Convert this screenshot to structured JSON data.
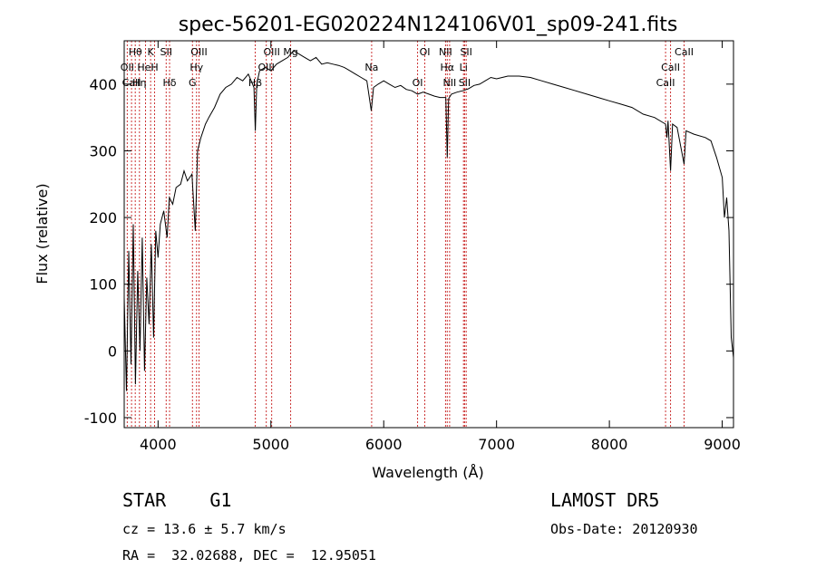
{
  "header": {
    "title": "spec-56201-EG020224N124106V01_sp09-241.fits"
  },
  "chart_data": {
    "type": "line",
    "title": "spec-56201-EG020224N124106V01_sp09-241.fits",
    "xlabel": "Wavelength (Å)",
    "ylabel": "Flux (relative)",
    "xlim": [
      3700,
      9100
    ],
    "ylim": [
      -115,
      465
    ],
    "xticks": [
      4000,
      5000,
      6000,
      7000,
      8000,
      9000
    ],
    "yticks": [
      -100,
      0,
      100,
      200,
      300,
      400
    ],
    "grid": false,
    "series": [
      {
        "values": [
          [
            3700,
            80
          ],
          [
            3720,
            -60
          ],
          [
            3740,
            150
          ],
          [
            3760,
            -20
          ],
          [
            3780,
            190
          ],
          [
            3800,
            -50
          ],
          [
            3820,
            120
          ],
          [
            3840,
            0
          ],
          [
            3860,
            170
          ],
          [
            3880,
            -30
          ],
          [
            3900,
            110
          ],
          [
            3920,
            40
          ],
          [
            3940,
            160
          ],
          [
            3960,
            20
          ],
          [
            3980,
            180
          ],
          [
            4000,
            140
          ],
          [
            4020,
            190
          ],
          [
            4050,
            210
          ],
          [
            4080,
            170
          ],
          [
            4100,
            230
          ],
          [
            4130,
            220
          ],
          [
            4160,
            245
          ],
          [
            4200,
            250
          ],
          [
            4230,
            270
          ],
          [
            4260,
            255
          ],
          [
            4300,
            265
          ],
          [
            4330,
            180
          ],
          [
            4350,
            300
          ],
          [
            4380,
            320
          ],
          [
            4420,
            340
          ],
          [
            4450,
            350
          ],
          [
            4500,
            365
          ],
          [
            4550,
            385
          ],
          [
            4600,
            395
          ],
          [
            4650,
            400
          ],
          [
            4700,
            410
          ],
          [
            4750,
            405
          ],
          [
            4800,
            415
          ],
          [
            4850,
            395
          ],
          [
            4862,
            330
          ],
          [
            4875,
            400
          ],
          [
            4900,
            420
          ],
          [
            4950,
            425
          ],
          [
            5000,
            420
          ],
          [
            5050,
            430
          ],
          [
            5100,
            435
          ],
          [
            5150,
            440
          ],
          [
            5200,
            450
          ],
          [
            5250,
            445
          ],
          [
            5300,
            440
          ],
          [
            5350,
            435
          ],
          [
            5400,
            440
          ],
          [
            5450,
            430
          ],
          [
            5500,
            432
          ],
          [
            5550,
            430
          ],
          [
            5600,
            428
          ],
          [
            5650,
            425
          ],
          [
            5700,
            420
          ],
          [
            5750,
            415
          ],
          [
            5800,
            410
          ],
          [
            5850,
            405
          ],
          [
            5890,
            360
          ],
          [
            5910,
            395
          ],
          [
            5950,
            400
          ],
          [
            6000,
            405
          ],
          [
            6050,
            400
          ],
          [
            6100,
            395
          ],
          [
            6150,
            398
          ],
          [
            6200,
            392
          ],
          [
            6250,
            390
          ],
          [
            6300,
            385
          ],
          [
            6350,
            388
          ],
          [
            6400,
            385
          ],
          [
            6450,
            382
          ],
          [
            6500,
            380
          ],
          [
            6550,
            380
          ],
          [
            6563,
            290
          ],
          [
            6575,
            378
          ],
          [
            6600,
            385
          ],
          [
            6650,
            388
          ],
          [
            6700,
            390
          ],
          [
            6750,
            393
          ],
          [
            6800,
            398
          ],
          [
            6850,
            400
          ],
          [
            6900,
            405
          ],
          [
            6950,
            410
          ],
          [
            7000,
            408
          ],
          [
            7050,
            410
          ],
          [
            7100,
            412
          ],
          [
            7200,
            412
          ],
          [
            7300,
            410
          ],
          [
            7400,
            405
          ],
          [
            7500,
            400
          ],
          [
            7600,
            395
          ],
          [
            7700,
            390
          ],
          [
            7800,
            385
          ],
          [
            7900,
            380
          ],
          [
            8000,
            375
          ],
          [
            8100,
            370
          ],
          [
            8200,
            365
          ],
          [
            8300,
            355
          ],
          [
            8400,
            350
          ],
          [
            8498,
            340
          ],
          [
            8510,
            320
          ],
          [
            8520,
            345
          ],
          [
            8542,
            270
          ],
          [
            8560,
            340
          ],
          [
            8600,
            335
          ],
          [
            8662,
            280
          ],
          [
            8680,
            330
          ],
          [
            8750,
            325
          ],
          [
            8850,
            320
          ],
          [
            8900,
            315
          ],
          [
            8950,
            290
          ],
          [
            9000,
            260
          ],
          [
            9020,
            200
          ],
          [
            9040,
            230
          ],
          [
            9060,
            180
          ],
          [
            9080,
            20
          ],
          [
            9100,
            -10
          ]
        ]
      }
    ],
    "lines": [
      {
        "label": "Hθ",
        "x": 3798
      },
      {
        "label": "OII",
        "x": 3727
      },
      {
        "label": "CaII",
        "x": 3765
      },
      {
        "label": "K",
        "x": 3934
      },
      {
        "label": "HeI",
        "x": 3889
      },
      {
        "label": "Hη",
        "x": 3835
      },
      {
        "label": "SII",
        "x": 4072
      },
      {
        "label": "H",
        "x": 3969
      },
      {
        "label": "Hδ",
        "x": 4102
      },
      {
        "label": "OIII",
        "x": 4363
      },
      {
        "label": "Hγ",
        "x": 4341
      },
      {
        "label": "G",
        "x": 4305
      },
      {
        "label": "OIII",
        "x": 5007
      },
      {
        "label": "OIII",
        "x": 4959
      },
      {
        "label": "Hβ",
        "x": 4861
      },
      {
        "label": "Mg",
        "x": 5175
      },
      {
        "label": "Na",
        "x": 5893
      },
      {
        "label": "OI",
        "x": 6300
      },
      {
        "label": "OI",
        "x": 6364
      },
      {
        "label": "Hα",
        "x": 6563
      },
      {
        "label": "SII",
        "x": 6717
      },
      {
        "label": "NII",
        "x": 6548
      },
      {
        "label": "Li",
        "x": 6707
      },
      {
        "label": "NII",
        "x": 6584
      },
      {
        "label": "SII",
        "x": 6731
      },
      {
        "label": "CaII",
        "x": 8542
      },
      {
        "label": "CaII",
        "x": 8498
      },
      {
        "label": "CaII",
        "x": 8662
      }
    ]
  },
  "info": {
    "object": "STAR    G1",
    "cz": "cz = 13.6 ± 5.7 km/s",
    "coords": "RA =  32.02688, DEC =  12.95051",
    "survey": "LAMOST DR5",
    "obs_date": "Obs-Date: 20120930"
  },
  "colors": {
    "line_marker": "#cc3333",
    "spectrum": "#000000"
  }
}
